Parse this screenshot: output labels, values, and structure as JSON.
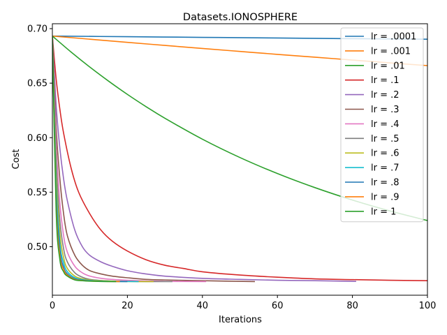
{
  "chart_data": {
    "type": "line",
    "title": "Datasets.IONOSPHERE",
    "xlabel": "Iterations",
    "ylabel": "Cost",
    "xlim": [
      0,
      100
    ],
    "ylim": [
      0.4555,
      0.7045
    ],
    "xticks": [
      0,
      20,
      40,
      60,
      80,
      100
    ],
    "yticks": [
      0.5,
      0.55,
      0.6,
      0.65,
      0.7
    ],
    "ytick_labels": [
      "0.50",
      "0.55",
      "0.60",
      "0.65",
      "0.70"
    ],
    "grid": false,
    "legend_position": "top-right",
    "series": [
      {
        "name": "lr = .0001",
        "color": "#1f77b4",
        "x": [
          0,
          20,
          40,
          60,
          80,
          100
        ],
        "y": [
          0.6932,
          0.6926,
          0.692,
          0.6914,
          0.6908,
          0.6903
        ]
      },
      {
        "name": "lr = .001",
        "color": "#ff7f0e",
        "x": [
          0,
          10,
          20,
          30,
          40,
          50,
          60,
          70,
          80,
          90,
          100
        ],
        "y": [
          0.6932,
          0.6903,
          0.6874,
          0.6846,
          0.6818,
          0.6791,
          0.6764,
          0.6738,
          0.6712,
          0.6686,
          0.6661
        ]
      },
      {
        "name": "lr = .01",
        "color": "#2ca02c",
        "x": [
          0,
          5,
          10,
          15,
          20,
          25,
          30,
          40,
          50,
          60,
          70,
          80,
          90,
          100
        ],
        "y": [
          0.6932,
          0.6785,
          0.6647,
          0.6518,
          0.6397,
          0.6284,
          0.6178,
          0.5986,
          0.5818,
          0.5671,
          0.5542,
          0.5428,
          0.5328,
          0.524
        ]
      },
      {
        "name": "lr = .1",
        "color": "#d62728",
        "x": [
          0,
          1,
          2,
          3,
          5,
          7,
          10,
          13,
          16,
          20,
          25,
          30,
          35,
          40,
          50,
          60,
          70,
          80,
          90,
          100
        ],
        "y": [
          0.6932,
          0.654,
          0.626,
          0.604,
          0.572,
          0.55,
          0.53,
          0.515,
          0.505,
          0.496,
          0.488,
          0.483,
          0.48,
          0.477,
          0.474,
          0.472,
          0.4705,
          0.4698,
          0.4692,
          0.4688
        ]
      },
      {
        "name": "lr = .2",
        "color": "#9467bd",
        "x": [
          0,
          1,
          2,
          3,
          4,
          6,
          8,
          10,
          13,
          16,
          20,
          25,
          30,
          40,
          50,
          60,
          70,
          81
        ],
        "y": [
          0.6932,
          0.63,
          0.59,
          0.562,
          0.542,
          0.515,
          0.5,
          0.492,
          0.486,
          0.482,
          0.478,
          0.475,
          0.473,
          0.471,
          0.47,
          0.4692,
          0.4688,
          0.4682
        ]
      },
      {
        "name": "lr = .3",
        "color": "#8c564b",
        "x": [
          0,
          1,
          2,
          3,
          4,
          6,
          8,
          10,
          13,
          16,
          20,
          25,
          30,
          40,
          54
        ],
        "y": [
          0.6932,
          0.61,
          0.562,
          0.53,
          0.51,
          0.492,
          0.483,
          0.478,
          0.475,
          0.473,
          0.4715,
          0.47,
          0.4695,
          0.4688,
          0.468
        ]
      },
      {
        "name": "lr = .4",
        "color": "#e377c2",
        "x": [
          0,
          1,
          2,
          3,
          4,
          6,
          8,
          10,
          13,
          16,
          20,
          25,
          30,
          41
        ],
        "y": [
          0.6932,
          0.595,
          0.54,
          0.51,
          0.495,
          0.482,
          0.476,
          0.473,
          0.471,
          0.47,
          0.4692,
          0.4686,
          0.4682,
          0.468
        ]
      },
      {
        "name": "lr = .5",
        "color": "#7f7f7f",
        "x": [
          0,
          1,
          2,
          3,
          4,
          6,
          8,
          10,
          13,
          16,
          20,
          25,
          32
        ],
        "y": [
          0.6932,
          0.58,
          0.524,
          0.498,
          0.486,
          0.476,
          0.472,
          0.47,
          0.469,
          0.4685,
          0.4682,
          0.468,
          0.468
        ]
      },
      {
        "name": "lr = .6",
        "color": "#bcbd22",
        "x": [
          0,
          1,
          2,
          3,
          4,
          6,
          8,
          10,
          13,
          16,
          20,
          27
        ],
        "y": [
          0.6932,
          0.568,
          0.512,
          0.49,
          0.48,
          0.473,
          0.4705,
          0.4695,
          0.4688,
          0.4684,
          0.4681,
          0.468
        ]
      },
      {
        "name": "lr = .7",
        "color": "#17becf",
        "x": [
          0,
          1,
          2,
          3,
          4,
          6,
          8,
          10,
          13,
          16,
          23
        ],
        "y": [
          0.6932,
          0.558,
          0.503,
          0.485,
          0.477,
          0.4715,
          0.4698,
          0.469,
          0.4685,
          0.4682,
          0.468
        ]
      },
      {
        "name": "lr = .8",
        "color": "#1f77b4",
        "x": [
          0,
          1,
          2,
          3,
          4,
          6,
          8,
          10,
          13,
          16,
          20
        ],
        "y": [
          0.6932,
          0.548,
          0.497,
          0.481,
          0.475,
          0.4705,
          0.4692,
          0.4687,
          0.4683,
          0.4681,
          0.468
        ]
      },
      {
        "name": "lr = .9",
        "color": "#ff7f0e",
        "x": [
          0,
          1,
          2,
          3,
          4,
          6,
          8,
          10,
          13,
          18
        ],
        "y": [
          0.6932,
          0.54,
          0.492,
          0.479,
          0.474,
          0.47,
          0.469,
          0.4685,
          0.4682,
          0.468
        ]
      },
      {
        "name": "lr = 1",
        "color": "#2ca02c",
        "x": [
          0,
          1,
          2,
          3,
          4,
          6,
          8,
          10,
          13,
          17
        ],
        "y": [
          0.6932,
          0.533,
          0.488,
          0.477,
          0.473,
          0.4695,
          0.4688,
          0.4684,
          0.4681,
          0.468
        ]
      }
    ]
  }
}
